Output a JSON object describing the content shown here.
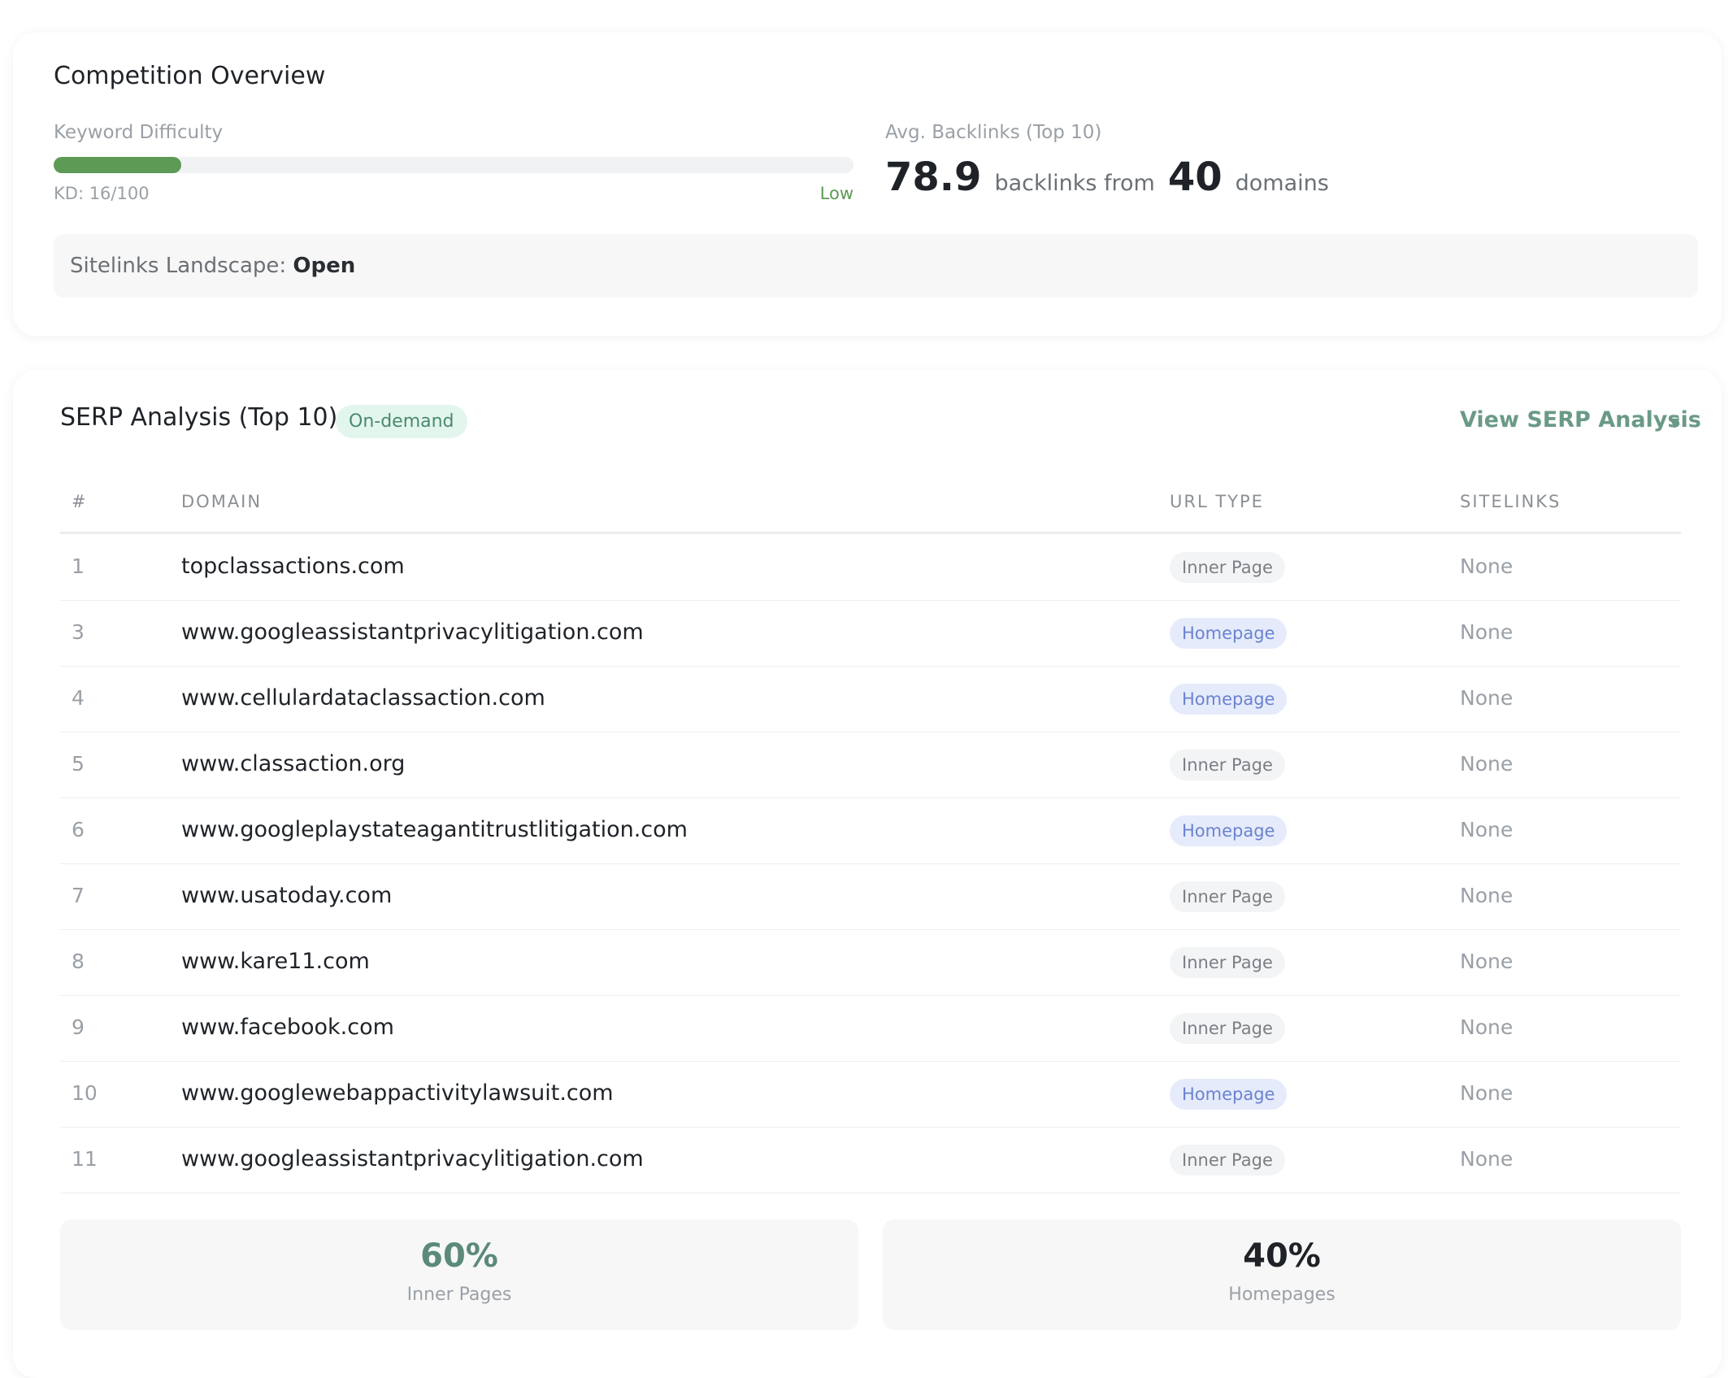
{
  "overview": {
    "title": "Competition Overview",
    "kd": {
      "label": "Keyword Difficulty",
      "value": 16,
      "max": 100,
      "text": "KD: 16/100",
      "level": "Low",
      "color": "#5d9a55"
    },
    "backlinks": {
      "label": "Avg. Backlinks (Top 10)",
      "count": "78.9",
      "text1": "backlinks from",
      "domains": "40",
      "text2": "domains"
    },
    "sitelinks": {
      "label": "Sitelinks Landscape:",
      "value": "Open"
    }
  },
  "serp": {
    "title": "SERP Analysis (Top 10)",
    "badge": "On-demand",
    "view_link": "View SERP Analysis",
    "view_caret_icon": "caret-down-icon",
    "columns": [
      "#",
      "DOMAIN",
      "URL TYPE",
      "SITELINKS"
    ],
    "rows": [
      {
        "num": "1",
        "domain": "topclassactions.com",
        "type": "Inner Page",
        "sitelinks": "None"
      },
      {
        "num": "3",
        "domain": "www.googleassistantprivacylitigation.com",
        "type": "Homepage",
        "sitelinks": "None"
      },
      {
        "num": "4",
        "domain": "www.cellulardataclassaction.com",
        "type": "Homepage",
        "sitelinks": "None"
      },
      {
        "num": "5",
        "domain": "www.classaction.org",
        "type": "Inner Page",
        "sitelinks": "None"
      },
      {
        "num": "6",
        "domain": "www.googleplaystateagantitrustlitigation.com",
        "type": "Homepage",
        "sitelinks": "None"
      },
      {
        "num": "7",
        "domain": "www.usatoday.com",
        "type": "Inner Page",
        "sitelinks": "None"
      },
      {
        "num": "8",
        "domain": "www.kare11.com",
        "type": "Inner Page",
        "sitelinks": "None"
      },
      {
        "num": "9",
        "domain": "www.facebook.com",
        "type": "Inner Page",
        "sitelinks": "None"
      },
      {
        "num": "10",
        "domain": "www.googlewebappactivitylawsuit.com",
        "type": "Homepage",
        "sitelinks": "None"
      },
      {
        "num": "11",
        "domain": "www.googleassistantprivacylitigation.com",
        "type": "Inner Page",
        "sitelinks": "None"
      }
    ],
    "stats": [
      {
        "value": "60%",
        "label": "Inner Pages",
        "color": "#5b8a79"
      },
      {
        "value": "40%",
        "label": "Homepages",
        "color": "#1f2328"
      }
    ]
  }
}
